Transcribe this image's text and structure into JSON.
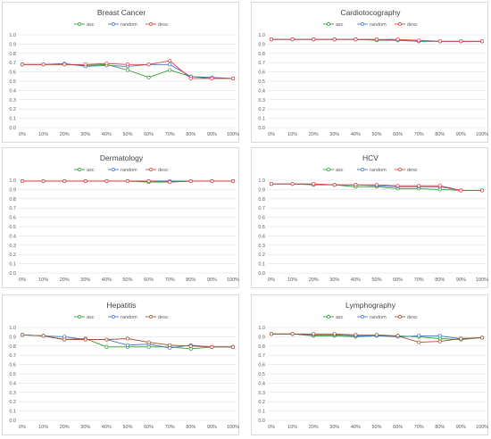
{
  "chart_data": [
    {
      "type": "line",
      "title": "Breast Cancer",
      "categories": [
        "0%",
        "10%",
        "20%",
        "30%",
        "40%",
        "50%",
        "60%",
        "70%",
        "80%",
        "90%",
        "100%"
      ],
      "y_ticks": [
        "0.0",
        "0.1",
        "0.2",
        "0.3",
        "0.4",
        "0.5",
        "0.6",
        "0.7",
        "0.8",
        "0.9",
        "1.0"
      ],
      "ylim": [
        0,
        1
      ],
      "series": [
        {
          "name": "asc",
          "color": "#2ca02c",
          "values": [
            0.68,
            0.68,
            0.68,
            0.67,
            0.68,
            0.62,
            0.54,
            0.62,
            0.55,
            0.53,
            0.53
          ]
        },
        {
          "name": "random",
          "color": "#4472c4",
          "values": [
            0.68,
            0.68,
            0.69,
            0.66,
            0.67,
            0.66,
            0.68,
            0.68,
            0.55,
            0.54,
            0.53
          ]
        },
        {
          "name": "desc",
          "color": "#e04040",
          "values": [
            0.68,
            0.68,
            0.68,
            0.68,
            0.69,
            0.68,
            0.68,
            0.72,
            0.53,
            0.53,
            0.53
          ]
        }
      ]
    },
    {
      "type": "line",
      "title": "Cardiotocography",
      "categories": [
        "0%",
        "10%",
        "20%",
        "30%",
        "40%",
        "50%",
        "60%",
        "70%",
        "80%",
        "90%",
        "100%"
      ],
      "y_ticks": [
        "0.0",
        "0.1",
        "0.2",
        "0.3",
        "0.4",
        "0.5",
        "0.6",
        "0.7",
        "0.8",
        "0.9",
        "1.0"
      ],
      "ylim": [
        0,
        1
      ],
      "series": [
        {
          "name": "asc",
          "color": "#2ca02c",
          "values": [
            0.95,
            0.95,
            0.95,
            0.95,
            0.95,
            0.94,
            0.94,
            0.93,
            0.93,
            0.93,
            0.93
          ]
        },
        {
          "name": "random",
          "color": "#4472c4",
          "values": [
            0.95,
            0.95,
            0.95,
            0.95,
            0.95,
            0.95,
            0.94,
            0.93,
            0.93,
            0.93,
            0.93
          ]
        },
        {
          "name": "desc",
          "color": "#e04040",
          "values": [
            0.95,
            0.95,
            0.95,
            0.95,
            0.95,
            0.95,
            0.95,
            0.94,
            0.93,
            0.93,
            0.93
          ]
        }
      ]
    },
    {
      "type": "line",
      "title": "Dermatology",
      "categories": [
        "0%",
        "10%",
        "20%",
        "30%",
        "40%",
        "50%",
        "60%",
        "70%",
        "80%",
        "90%",
        "100%"
      ],
      "y_ticks": [
        "0.0",
        "0.1",
        "0.2",
        "0.3",
        "0.4",
        "0.5",
        "0.6",
        "0.7",
        "0.8",
        "0.9",
        "1.0"
      ],
      "ylim": [
        0,
        1
      ],
      "series": [
        {
          "name": "asc",
          "color": "#2ca02c",
          "values": [
            0.99,
            0.99,
            0.99,
            0.99,
            0.99,
            0.99,
            0.98,
            0.98,
            0.99,
            0.99,
            0.99
          ]
        },
        {
          "name": "random",
          "color": "#4472c4",
          "values": [
            0.99,
            0.99,
            0.99,
            0.99,
            0.99,
            0.99,
            0.99,
            0.99,
            0.99,
            0.99,
            0.99
          ]
        },
        {
          "name": "desc",
          "color": "#e04040",
          "values": [
            0.99,
            0.99,
            0.99,
            0.99,
            0.99,
            0.99,
            0.99,
            0.98,
            0.99,
            0.99,
            0.99
          ]
        }
      ]
    },
    {
      "type": "line",
      "title": "HCV",
      "categories": [
        "0%",
        "10%",
        "20%",
        "30%",
        "40%",
        "50%",
        "60%",
        "70%",
        "80%",
        "90%",
        "100%"
      ],
      "y_ticks": [
        "0.0",
        "0.1",
        "0.2",
        "0.3",
        "0.4",
        "0.5",
        "0.6",
        "0.7",
        "0.8",
        "0.9",
        "1.0"
      ],
      "ylim": [
        0,
        1
      ],
      "series": [
        {
          "name": "asc",
          "color": "#2ca02c",
          "values": [
            0.96,
            0.96,
            0.95,
            0.95,
            0.93,
            0.93,
            0.91,
            0.91,
            0.9,
            0.89,
            0.89
          ]
        },
        {
          "name": "random",
          "color": "#4472c4",
          "values": [
            0.96,
            0.96,
            0.96,
            0.95,
            0.95,
            0.94,
            0.93,
            0.93,
            0.93,
            0.89,
            0.89
          ]
        },
        {
          "name": "desc",
          "color": "#e04040",
          "values": [
            0.96,
            0.96,
            0.96,
            0.95,
            0.95,
            0.95,
            0.94,
            0.94,
            0.94,
            0.89,
            0.89
          ]
        }
      ]
    },
    {
      "type": "line",
      "title": "Hepatitis",
      "categories": [
        "0%",
        "10%",
        "20%",
        "30%",
        "40%",
        "50%",
        "60%",
        "70%",
        "80%",
        "90%",
        "100%"
      ],
      "y_ticks": [
        "0.0",
        "0.1",
        "0.2",
        "0.3",
        "0.4",
        "0.5",
        "0.6",
        "0.7",
        "0.8",
        "0.9",
        "1.0"
      ],
      "ylim": [
        0,
        1
      ],
      "series": [
        {
          "name": "asc",
          "color": "#2ca02c",
          "values": [
            0.92,
            0.91,
            0.87,
            0.88,
            0.79,
            0.79,
            0.79,
            0.79,
            0.77,
            0.79,
            0.79
          ]
        },
        {
          "name": "random",
          "color": "#4472c4",
          "values": [
            0.92,
            0.91,
            0.9,
            0.87,
            0.87,
            0.81,
            0.82,
            0.78,
            0.81,
            0.79,
            0.79
          ]
        },
        {
          "name": "desc",
          "color": "#a0522d",
          "values": [
            0.92,
            0.91,
            0.87,
            0.87,
            0.87,
            0.88,
            0.84,
            0.81,
            0.8,
            0.79,
            0.79
          ]
        }
      ]
    },
    {
      "type": "line",
      "title": "Lymphography",
      "categories": [
        "0%",
        "10%",
        "20%",
        "30%",
        "40%",
        "50%",
        "60%",
        "70%",
        "80%",
        "90%",
        "100%"
      ],
      "y_ticks": [
        "0.0",
        "0.1",
        "0.2",
        "0.3",
        "0.4",
        "0.5",
        "0.6",
        "0.7",
        "0.8",
        "0.9",
        "1.0"
      ],
      "ylim": [
        0,
        1
      ],
      "series": [
        {
          "name": "asc",
          "color": "#2ca02c",
          "values": [
            0.93,
            0.93,
            0.91,
            0.91,
            0.9,
            0.91,
            0.91,
            0.9,
            0.88,
            0.87,
            0.89
          ]
        },
        {
          "name": "random",
          "color": "#4472c4",
          "values": [
            0.93,
            0.93,
            0.92,
            0.92,
            0.91,
            0.91,
            0.9,
            0.91,
            0.91,
            0.88,
            0.89
          ]
        },
        {
          "name": "desc",
          "color": "#a0522d",
          "values": [
            0.93,
            0.93,
            0.93,
            0.93,
            0.92,
            0.92,
            0.91,
            0.84,
            0.85,
            0.88,
            0.89
          ]
        }
      ]
    }
  ]
}
